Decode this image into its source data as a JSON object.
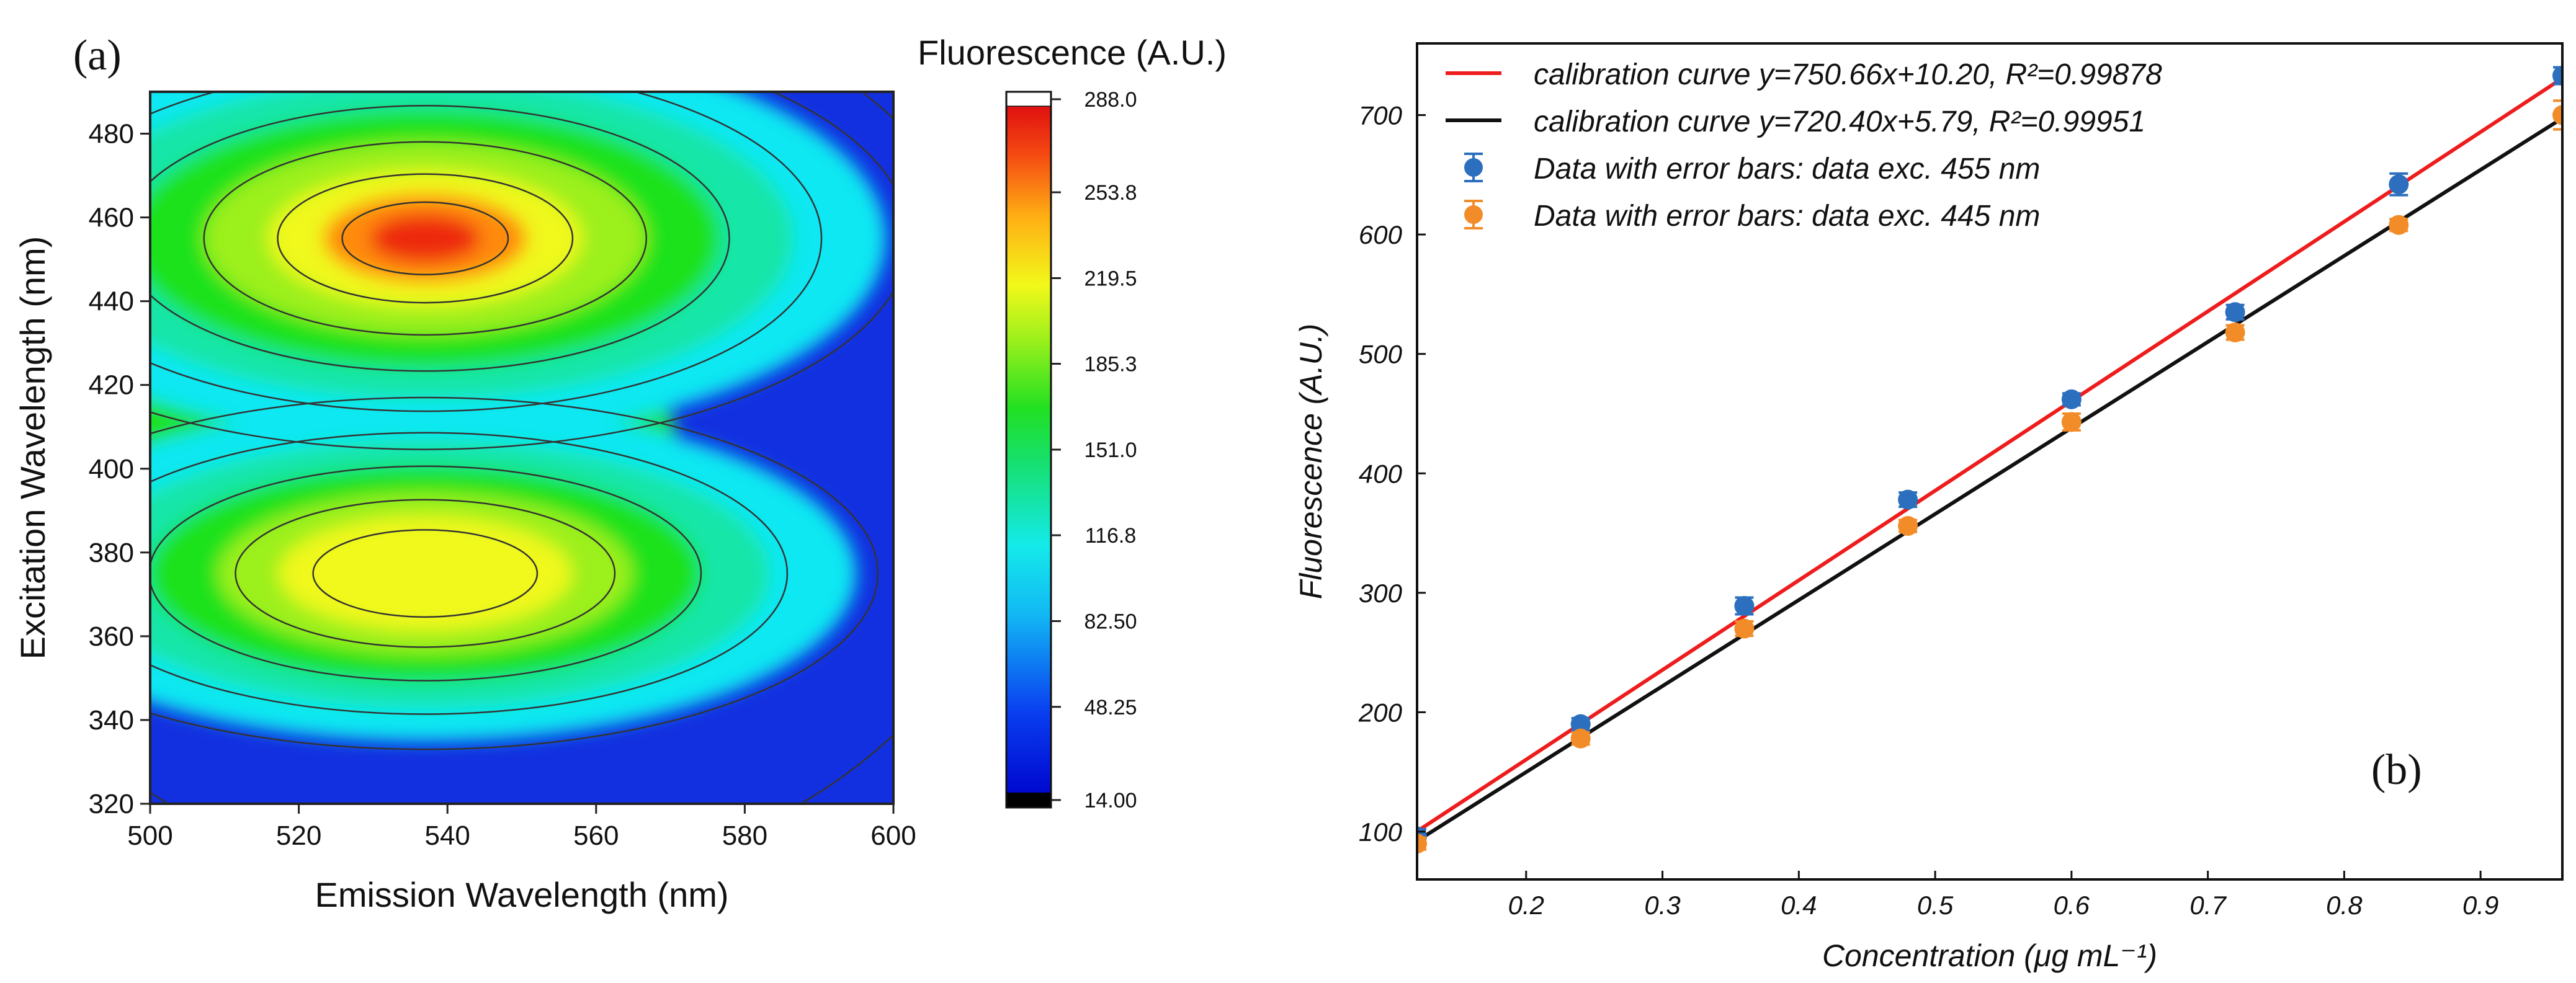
{
  "chart_data": [
    {
      "panel_label": "(a)",
      "type": "heatmap",
      "subtype": "contour",
      "title": "Fluorescence (A.U.)",
      "xlabel": "Emission Wavelength (nm)",
      "ylabel": "Excitation Wavelength (nm)",
      "xlim": [
        500,
        600
      ],
      "ylim": [
        320,
        490
      ],
      "xticks": [
        "500",
        "520",
        "540",
        "560",
        "580",
        "600"
      ],
      "yticks": [
        "320",
        "340",
        "360",
        "380",
        "400",
        "420",
        "440",
        "460",
        "480"
      ],
      "colorbar": {
        "range": [
          14.0,
          288.0
        ],
        "ticks": [
          "14.00",
          "48.25",
          "82.50",
          "116.8",
          "151.0",
          "185.3",
          "219.5",
          "253.8",
          "288.0"
        ]
      },
      "peaks": [
        {
          "emission": 537,
          "excitation": 455,
          "value": 280
        },
        {
          "emission": 537,
          "excitation": 375,
          "value": 205
        }
      ],
      "colors": {
        "low": "#0a1ad8",
        "cyan": "#10e8f2",
        "green": "#1ee21e",
        "yellow": "#f0f81a",
        "orange": "#ff8a10",
        "red": "#ee2a10",
        "contour": "#333333"
      }
    },
    {
      "panel_label": "(b)",
      "type": "scatter",
      "xlabel": "Concentration (μg mL⁻¹)",
      "ylabel": "Fluorescence (A.U.)",
      "xlim": [
        0.12,
        0.96
      ],
      "ylim": [
        60,
        760
      ],
      "xticks": [
        "0.2",
        "0.3",
        "0.4",
        "0.5",
        "0.6",
        "0.7",
        "0.8",
        "0.9"
      ],
      "yticks": [
        "100",
        "200",
        "300",
        "400",
        "500",
        "600",
        "700"
      ],
      "legend_position": "top-left",
      "lines": [
        {
          "name": "calibration curve y=750.66x+10.20, R²=0.99878",
          "slope": 750.66,
          "intercept": 10.2,
          "color": "#ee1c1c"
        },
        {
          "name": "calibration curve y=720.40x+5.79, R²=0.99951",
          "slope": 720.4,
          "intercept": 5.79,
          "color": "#111111"
        }
      ],
      "series": [
        {
          "name": "Data with error bars: data exc. 455 nm",
          "color": "#2b6fbe",
          "x": [
            0.12,
            0.24,
            0.36,
            0.48,
            0.6,
            0.72,
            0.84,
            0.96
          ],
          "y": [
            96,
            190,
            289,
            378,
            462,
            535,
            642,
            733
          ],
          "err": [
            6,
            5,
            7,
            6,
            5,
            6,
            9,
            7
          ]
        },
        {
          "name": "Data with error bars: data exc. 445 nm",
          "color": "#f28c28",
          "x": [
            0.12,
            0.24,
            0.36,
            0.48,
            0.6,
            0.72,
            0.84,
            0.96
          ],
          "y": [
            90,
            178,
            270,
            356,
            443,
            518,
            608,
            700
          ],
          "err": [
            5,
            5,
            6,
            5,
            7,
            6,
            5,
            12
          ]
        }
      ]
    }
  ]
}
